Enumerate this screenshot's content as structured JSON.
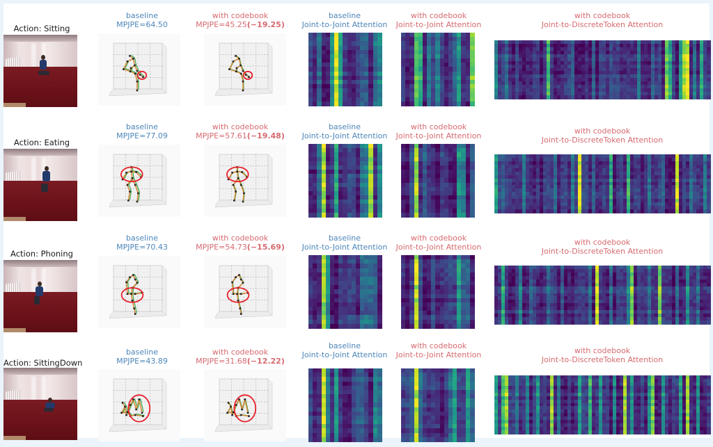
{
  "figure": {
    "colors": {
      "baseline": "#4d86b9",
      "codebook": "#d66a6f",
      "skeleton_pred": "#d58b3c",
      "skeleton_gt": "#3aa64a",
      "joint": "#222222",
      "highlight_circle": "#e8202a"
    },
    "colormap": "viridis",
    "rows": [
      {
        "action_label": "Action: Sitting",
        "baseline": {
          "title": "baseline",
          "metric": "MPJPE=64.50"
        },
        "codebook": {
          "title": "with codebook",
          "metric": "MPJPE=45.25",
          "delta": "(−19.25)"
        },
        "j2j_baseline": {
          "title": "baseline",
          "subtitle": "Joint-to-Joint Attention",
          "strong_cols": {
            "2": 0.35,
            "5": 0.5,
            "6": 0.95,
            "7": 0.55,
            "12": 0.3,
            "13": 0.3,
            "15": 0.35,
            "16": 0.45
          },
          "noise_seed": 11
        },
        "j2j_codebook": {
          "title": "with codebook",
          "subtitle": "Joint-to-Joint Attention",
          "strong_cols": {
            "3": 0.7,
            "4": 0.6,
            "6": 0.35,
            "8": 0.4,
            "12": 0.3,
            "13": 0.5,
            "16": 0.75
          },
          "noise_seed": 12
        },
        "j2d_codebook": {
          "title": "with codebook",
          "subtitle": "Joint-to-DiscreteToken Attention",
          "strong_cols": {
            "0": 0.45,
            "3": 0.35,
            "15": 0.7,
            "22": 0.3,
            "28": 0.3,
            "33": 0.25,
            "41": 0.4,
            "45": 0.3,
            "49": 0.8,
            "50": 0.6,
            "53": 0.55,
            "54": 0.85,
            "55": 0.95,
            "57": 0.4,
            "59": 0.6
          },
          "noise_seed": 13
        }
      },
      {
        "action_label": "Action: Eating",
        "baseline": {
          "title": "baseline",
          "metric": "MPJPE=77.09"
        },
        "codebook": {
          "title": "with codebook",
          "metric": "MPJPE=57.61",
          "delta": "(−19.48)"
        },
        "j2j_baseline": {
          "title": "baseline",
          "subtitle": "Joint-to-Joint Attention",
          "strong_cols": {
            "2": 0.35,
            "3": 0.85,
            "6": 0.6,
            "12": 0.35,
            "13": 0.4,
            "14": 0.85,
            "16": 0.45
          },
          "noise_seed": 21
        },
        "j2j_codebook": {
          "title": "with codebook",
          "subtitle": "Joint-to-Joint Attention",
          "strong_cols": {
            "2": 0.25,
            "3": 0.85,
            "5": 0.3,
            "13": 0.5,
            "14": 0.45,
            "16": 0.3
          },
          "noise_seed": 22
        },
        "j2d_codebook": {
          "title": "with codebook",
          "subtitle": "Joint-to-DiscreteToken Attention",
          "strong_cols": {
            "0": 0.55,
            "2": 0.3,
            "8": 0.4,
            "17": 0.35,
            "22": 0.4,
            "24": 0.95,
            "28": 0.3,
            "33": 0.6,
            "38": 0.65,
            "44": 0.35,
            "48": 0.3,
            "52": 0.9,
            "56": 0.35,
            "60": 0.4
          },
          "noise_seed": 23
        }
      },
      {
        "action_label": "Action: Phoning",
        "baseline": {
          "title": "baseline",
          "metric": "MPJPE=70.43"
        },
        "codebook": {
          "title": "with codebook",
          "metric": "MPJPE=54.73",
          "delta": "(−15.69)"
        },
        "j2j_baseline": {
          "title": "baseline",
          "subtitle": "Joint-to-Joint Attention",
          "strong_cols": {
            "3": 0.85,
            "4": 0.5,
            "12": 0.35,
            "13": 0.35,
            "14": 0.35,
            "15": 0.3
          },
          "noise_seed": 31
        },
        "j2j_codebook": {
          "title": "with codebook",
          "subtitle": "Joint-to-Joint Attention",
          "strong_cols": {
            "3": 0.92,
            "4": 0.25,
            "7": 0.25,
            "13": 0.55,
            "14": 0.3,
            "15": 0.3
          },
          "noise_seed": 32
        },
        "j2d_codebook": {
          "title": "with codebook",
          "subtitle": "Joint-to-DiscreteToken Attention",
          "strong_cols": {
            "2": 0.6,
            "7": 0.45,
            "10": 0.3,
            "15": 0.35,
            "19": 0.3,
            "27": 0.35,
            "29": 0.95,
            "33": 0.35,
            "38": 0.45,
            "39": 0.8,
            "44": 0.35,
            "47": 0.8,
            "52": 0.35,
            "55": 0.5,
            "58": 0.35
          },
          "noise_seed": 33
        }
      },
      {
        "action_label": "Action: SittingDown",
        "baseline": {
          "title": "baseline",
          "metric": "MPJPE=43.89"
        },
        "codebook": {
          "title": "with codebook",
          "metric": "MPJPE=31.68",
          "delta": "(−12.22)"
        },
        "j2j_baseline": {
          "title": "baseline",
          "subtitle": "Joint-to-Joint Attention",
          "strong_cols": {
            "3": 0.9,
            "4": 0.4,
            "6": 0.55,
            "11": 0.3,
            "12": 0.3,
            "15": 0.45,
            "16": 0.35
          },
          "noise_seed": 41
        },
        "j2j_codebook": {
          "title": "with codebook",
          "subtitle": "Joint-to-Joint Attention",
          "strong_cols": {
            "2": 0.3,
            "3": 0.9,
            "4": 0.35,
            "11": 0.35,
            "12": 0.55,
            "15": 0.55,
            "16": 0.3
          },
          "noise_seed": 42
        },
        "j2d_codebook": {
          "title": "with codebook",
          "subtitle": "Joint-to-DiscreteToken Attention",
          "strong_cols": {
            "0": 0.55,
            "2": 0.7,
            "3": 0.85,
            "6": 0.4,
            "9": 0.45,
            "12": 0.5,
            "16": 0.85,
            "18": 0.4,
            "24": 0.55,
            "27": 0.65,
            "30": 0.5,
            "34": 0.45,
            "37": 0.85,
            "39": 0.5,
            "44": 0.5,
            "45": 0.8,
            "48": 0.5,
            "53": 0.55,
            "55": 0.85,
            "58": 0.5
          },
          "noise_seed": 43
        }
      }
    ]
  }
}
